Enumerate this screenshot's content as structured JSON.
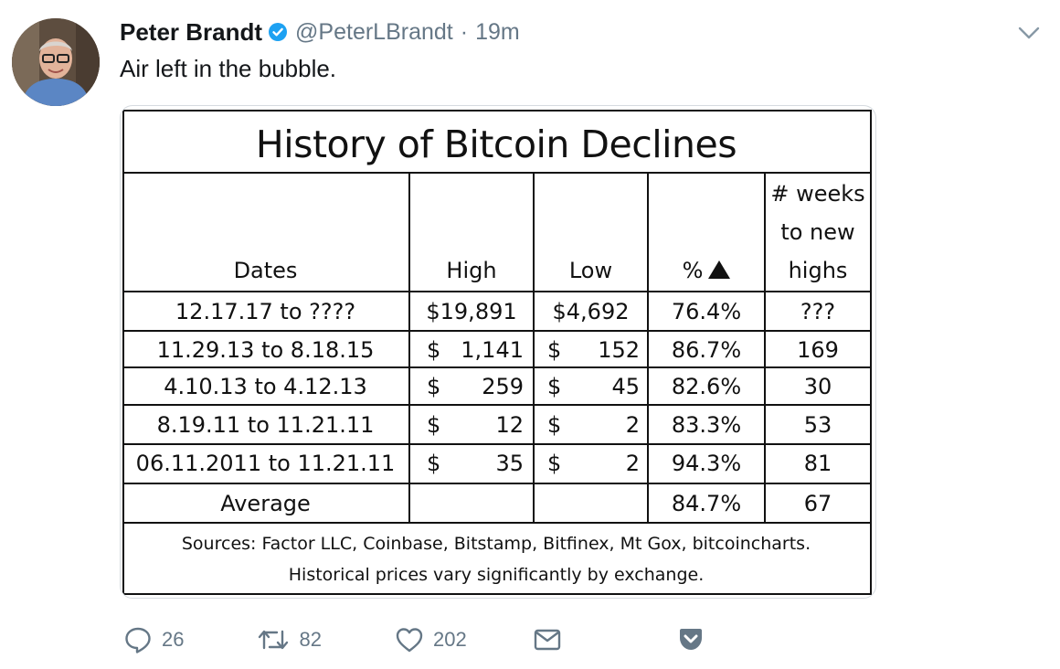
{
  "tweet": {
    "author_name": "Peter Brandt",
    "handle": "@PeterLBrandt",
    "separator": "·",
    "time": "19m",
    "text": "Air left in the bubble."
  },
  "table": {
    "title": "History of Bitcoin Declines",
    "headers": {
      "dates": "Dates",
      "high": "High",
      "low": "Low",
      "pct": "%",
      "weeks_line1": "# weeks",
      "weeks_line2": "to new",
      "weeks_line3": "highs"
    },
    "rows": [
      {
        "dates": "12.17.17 to ????",
        "high_sym": "",
        "high": "$19,891",
        "low_sym": "",
        "low": "$4,692",
        "pct": "76.4%",
        "weeks": "???"
      },
      {
        "dates": "11.29.13 to 8.18.15",
        "high_sym": "$",
        "high": "1,141",
        "low_sym": "$",
        "low": "152",
        "pct": "86.7%",
        "weeks": "169"
      },
      {
        "dates": "4.10.13 to 4.12.13",
        "high_sym": "$",
        "high": "259",
        "low_sym": "$",
        "low": "45",
        "pct": "82.6%",
        "weeks": "30"
      },
      {
        "dates": "8.19.11 to 11.21.11",
        "high_sym": "$",
        "high": "12",
        "low_sym": "$",
        "low": "2",
        "pct": "83.3%",
        "weeks": "53"
      },
      {
        "dates": "06.11.2011 to 11.21.11",
        "high_sym": "$",
        "high": "35",
        "low_sym": "$",
        "low": "2",
        "pct": "94.3%",
        "weeks": "81"
      }
    ],
    "average": {
      "label": "Average",
      "pct": "84.7%",
      "weeks": "67"
    },
    "sources_line1": "Sources: Factor LLC, Coinbase, Bitstamp, Bitfinex, Mt Gox, bitcoincharts.",
    "sources_line2": "Historical prices vary significantly by exchange."
  },
  "actions": {
    "replies": "26",
    "retweets": "82",
    "likes": "202"
  },
  "colors": {
    "text": "#14171a",
    "muted": "#657786",
    "verified": "#1da1f2"
  }
}
